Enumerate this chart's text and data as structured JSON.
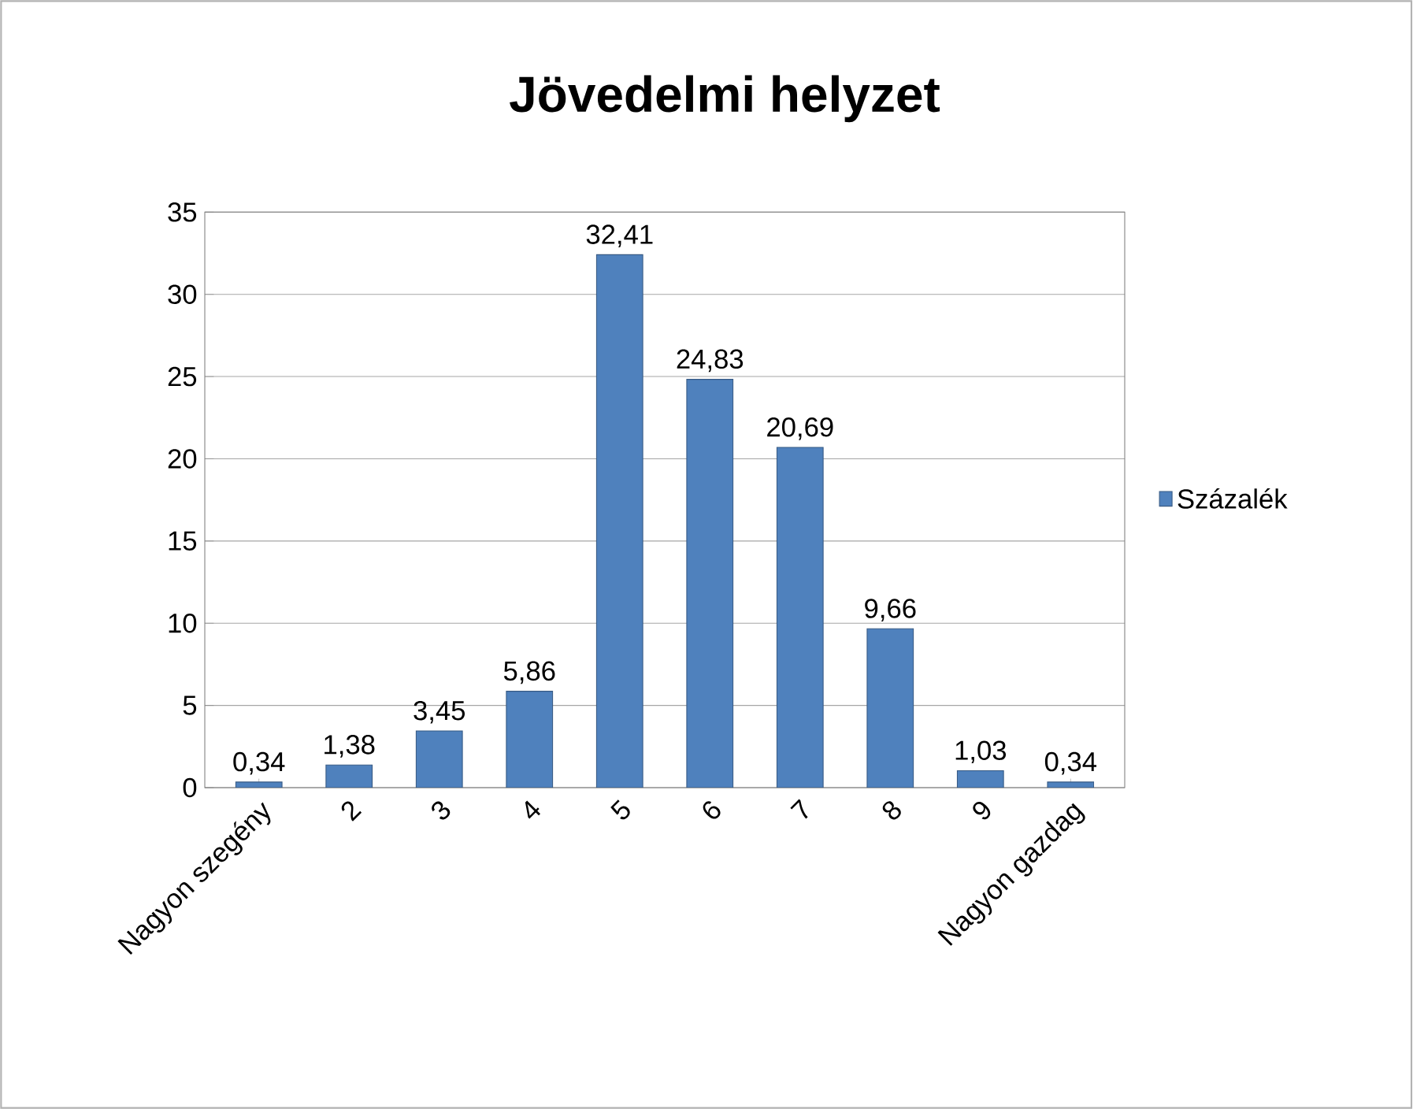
{
  "chart_data": {
    "type": "bar",
    "title": "Jövedelmi helyzet",
    "categories": [
      "Nagyon szegény",
      "2",
      "3",
      "4",
      "5",
      "6",
      "7",
      "8",
      "9",
      "Nagyon gazdag"
    ],
    "series": [
      {
        "name": "Százalék",
        "color": "#4f81bd",
        "values": [
          0.34,
          1.38,
          3.45,
          5.86,
          32.41,
          24.83,
          20.69,
          9.66,
          1.03,
          0.34
        ],
        "value_labels": [
          "0,34",
          "1,38",
          "3,45",
          "5,86",
          "32,41",
          "24,83",
          "20,69",
          "9,66",
          "1,03",
          "0,34"
        ]
      }
    ],
    "ylim": [
      0,
      35
    ],
    "yticks": [
      0,
      5,
      10,
      15,
      20,
      25,
      30,
      35
    ],
    "grid": "y",
    "legend": "right"
  }
}
